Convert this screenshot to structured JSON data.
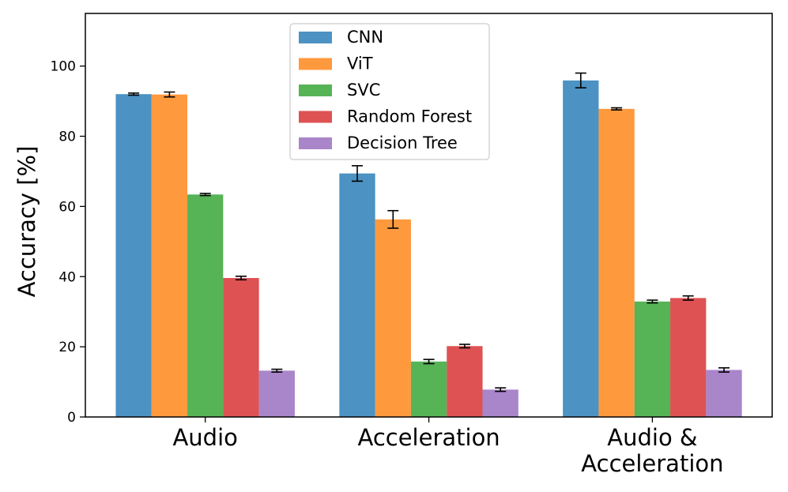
{
  "chart_data": {
    "type": "bar",
    "title": "",
    "xlabel": "",
    "ylabel": "Accuracy [%]",
    "ylim": [
      0,
      115
    ],
    "yticks": [
      0,
      20,
      40,
      60,
      80,
      100
    ],
    "categories": [
      "Audio",
      "Acceleration",
      "Audio & Acceleration"
    ],
    "category_lines": [
      [
        "Audio"
      ],
      [
        "Acceleration"
      ],
      [
        "Audio &",
        "Acceleration"
      ]
    ],
    "legend_position": "upper-center",
    "series": [
      {
        "name": "CNN",
        "color": "#1f77b4",
        "values": [
          92.0,
          69.4,
          95.9
        ],
        "errors": [
          0.3,
          2.2,
          2.1
        ]
      },
      {
        "name": "ViT",
        "color": "#ff7f0e",
        "values": [
          91.9,
          56.3,
          87.8
        ],
        "errors": [
          0.7,
          2.5,
          0.3
        ]
      },
      {
        "name": "SVC",
        "color": "#2ca02c",
        "values": [
          63.4,
          15.8,
          32.9
        ],
        "errors": [
          0.3,
          0.6,
          0.4
        ]
      },
      {
        "name": "Random Forest",
        "color": "#d62728",
        "values": [
          39.6,
          20.2,
          33.9
        ],
        "errors": [
          0.5,
          0.5,
          0.6
        ]
      },
      {
        "name": "Decision Tree",
        "color": "#9467bd",
        "values": [
          13.2,
          7.8,
          13.4
        ],
        "errors": [
          0.4,
          0.5,
          0.6
        ]
      }
    ]
  }
}
